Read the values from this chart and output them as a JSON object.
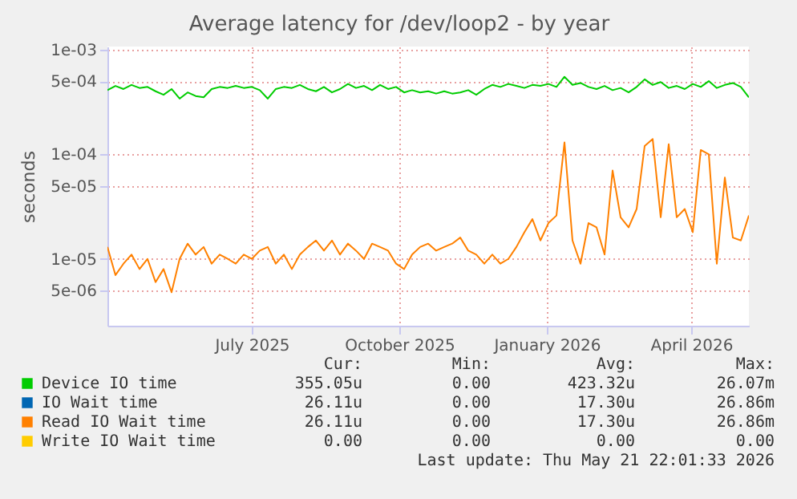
{
  "chart_data": {
    "type": "line",
    "title": "Average latency for /dev/loop2 - by year",
    "ylabel": "seconds",
    "log": "y",
    "grid": true,
    "legend": "bottom left",
    "xlim": [
      "2025-04-16",
      "2026-05-21"
    ],
    "xticks": [
      {
        "value": "2025-07-15",
        "label": "July 2025"
      },
      {
        "value": "2025-10-15",
        "label": "October 2025"
      },
      {
        "value": "2026-01-15",
        "label": "January 2026"
      },
      {
        "value": "2026-04-15",
        "label": "April 2026"
      }
    ],
    "ylim": [
      2.3e-06,
      0.00107
    ],
    "yticks": [
      {
        "value": 5e-06,
        "label": "5e-06"
      },
      {
        "value": 1e-05,
        "label": "1e-05"
      },
      {
        "value": 5e-05,
        "label": "5e-05"
      },
      {
        "value": 0.0001,
        "label": "1e-04"
      },
      {
        "value": 0.0005,
        "label": "5e-04"
      },
      {
        "value": 0.001,
        "label": "1e-03"
      }
    ],
    "x": [
      "2025-04-16",
      "2025-04-21",
      "2025-04-26",
      "2025-05-01",
      "2025-05-06",
      "2025-05-11",
      "2025-05-16",
      "2025-05-21",
      "2025-05-26",
      "2025-05-31",
      "2025-06-05",
      "2025-06-10",
      "2025-06-15",
      "2025-06-20",
      "2025-06-25",
      "2025-06-30",
      "2025-07-05",
      "2025-07-10",
      "2025-07-15",
      "2025-07-20",
      "2025-07-25",
      "2025-07-30",
      "2025-08-04",
      "2025-08-09",
      "2025-08-14",
      "2025-08-19",
      "2025-08-24",
      "2025-08-29",
      "2025-09-03",
      "2025-09-08",
      "2025-09-13",
      "2025-09-18",
      "2025-09-23",
      "2025-09-28",
      "2025-10-03",
      "2025-10-08",
      "2025-10-13",
      "2025-10-18",
      "2025-10-23",
      "2025-10-28",
      "2025-11-02",
      "2025-11-07",
      "2025-11-12",
      "2025-11-17",
      "2025-11-22",
      "2025-11-27",
      "2025-12-02",
      "2025-12-07",
      "2025-12-12",
      "2025-12-17",
      "2025-12-22",
      "2025-12-27",
      "2026-01-01",
      "2026-01-06",
      "2026-01-11",
      "2026-01-16",
      "2026-01-21",
      "2026-01-26",
      "2026-01-31",
      "2026-02-05",
      "2026-02-10",
      "2026-02-15",
      "2026-02-20",
      "2026-02-25",
      "2026-03-02",
      "2026-03-07",
      "2026-03-12",
      "2026-03-17",
      "2026-03-22",
      "2026-03-27",
      "2026-04-01",
      "2026-04-06",
      "2026-04-11",
      "2026-04-16",
      "2026-04-21",
      "2026-04-26",
      "2026-05-01",
      "2026-05-06",
      "2026-05-11",
      "2026-05-16",
      "2026-05-21"
    ],
    "series": [
      {
        "name": "Device IO time",
        "color": "#00cc00",
        "values": [
          0.00041,
          0.00045,
          0.00042,
          0.00046,
          0.00043,
          0.00044,
          0.0004,
          0.00037,
          0.00042,
          0.00034,
          0.00039,
          0.00036,
          0.00035,
          0.00042,
          0.00044,
          0.00043,
          0.00045,
          0.00043,
          0.00044,
          0.00041,
          0.00034,
          0.00042,
          0.00044,
          0.00043,
          0.00046,
          0.00042,
          0.0004,
          0.00044,
          0.00039,
          0.00042,
          0.00047,
          0.00043,
          0.00045,
          0.00041,
          0.00046,
          0.00042,
          0.00044,
          0.00039,
          0.00041,
          0.00039,
          0.0004,
          0.00038,
          0.0004,
          0.00038,
          0.00039,
          0.00041,
          0.00037,
          0.00042,
          0.00046,
          0.00044,
          0.00047,
          0.00045,
          0.00043,
          0.00046,
          0.00045,
          0.00047,
          0.00044,
          0.00055,
          0.00046,
          0.00048,
          0.00044,
          0.00042,
          0.00045,
          0.00041,
          0.00043,
          0.00039,
          0.00044,
          0.00052,
          0.00046,
          0.00049,
          0.00043,
          0.00045,
          0.00042,
          0.00047,
          0.00044,
          0.0005,
          0.00043,
          0.00046,
          0.00048,
          0.00044,
          0.00035
        ]
      },
      {
        "name": "IO Wait time",
        "color": "#0066b3",
        "values": [
          null,
          null,
          null,
          null,
          null,
          null,
          null,
          null,
          null,
          null,
          null,
          null,
          null,
          null,
          null,
          null,
          null,
          null,
          null,
          null,
          null,
          null,
          null,
          null,
          null,
          null,
          null,
          null,
          null,
          null,
          null,
          null,
          null,
          null,
          null,
          null,
          null,
          null,
          null,
          null,
          null,
          null,
          null,
          null,
          null,
          null,
          null,
          null,
          null,
          null,
          null,
          null,
          null,
          null,
          null,
          null,
          null,
          null,
          null,
          null,
          null,
          null,
          null,
          null,
          null,
          null,
          null,
          null,
          null,
          null,
          null,
          null,
          null,
          null,
          null,
          null,
          null,
          null,
          null,
          null,
          null
        ]
      },
      {
        "name": "Read IO Wait time",
        "color": "#ff8000",
        "values": [
          1.3e-05,
          7e-06,
          9e-06,
          1.1e-05,
          8e-06,
          1e-05,
          6e-06,
          8e-06,
          4.8e-06,
          1e-05,
          1.4e-05,
          1.1e-05,
          1.3e-05,
          9e-06,
          1.1e-05,
          1e-05,
          9e-06,
          1.1e-05,
          1e-05,
          1.2e-05,
          1.3e-05,
          9e-06,
          1.1e-05,
          8e-06,
          1.1e-05,
          1.3e-05,
          1.5e-05,
          1.2e-05,
          1.5e-05,
          1.1e-05,
          1.4e-05,
          1.2e-05,
          1e-05,
          1.4e-05,
          1.3e-05,
          1.2e-05,
          9e-06,
          8e-06,
          1.1e-05,
          1.3e-05,
          1.4e-05,
          1.2e-05,
          1.3e-05,
          1.4e-05,
          1.6e-05,
          1.2e-05,
          1.1e-05,
          9e-06,
          1.1e-05,
          9e-06,
          1e-05,
          1.3e-05,
          1.8e-05,
          2.4e-05,
          1.5e-05,
          2.2e-05,
          2.6e-05,
          0.00013,
          1.5e-05,
          9e-06,
          2.2e-05,
          2e-05,
          1.1e-05,
          7e-05,
          2.5e-05,
          2e-05,
          3e-05,
          0.00012,
          0.00014,
          2.5e-05,
          0.000125,
          2.5e-05,
          3e-05,
          1.8e-05,
          0.00011,
          0.0001,
          9e-06,
          6e-05,
          1.6e-05,
          1.5e-05,
          2.6e-05
        ]
      },
      {
        "name": "Write IO Wait time",
        "color": "#ffcc00",
        "values": [
          null,
          null,
          null,
          null,
          null,
          null,
          null,
          null,
          null,
          null,
          null,
          null,
          null,
          null,
          null,
          null,
          null,
          null,
          null,
          null,
          null,
          null,
          null,
          null,
          null,
          null,
          null,
          null,
          null,
          null,
          null,
          null,
          null,
          null,
          null,
          null,
          null,
          null,
          null,
          null,
          null,
          null,
          null,
          null,
          null,
          null,
          null,
          null,
          null,
          null,
          null,
          null,
          null,
          null,
          null,
          null,
          null,
          null,
          null,
          null,
          null,
          null,
          null,
          null,
          null,
          null,
          null,
          null,
          null,
          null,
          null,
          null,
          null,
          null,
          null,
          null,
          null,
          null,
          null,
          null,
          null
        ]
      }
    ],
    "annotations": [
      "Cur:",
      "Min:",
      "Avg:",
      "Max:",
      "355.05u",
      "0.00",
      "423.32u",
      "26.07m",
      "26.11u",
      "0.00",
      "17.30u",
      "26.86m",
      "26.11u",
      "0.00",
      "17.30u",
      "26.86m",
      "0.00",
      "0.00",
      "0.00",
      "0.00",
      "Last update: Thu May 21 22:01:33 2026"
    ]
  }
}
